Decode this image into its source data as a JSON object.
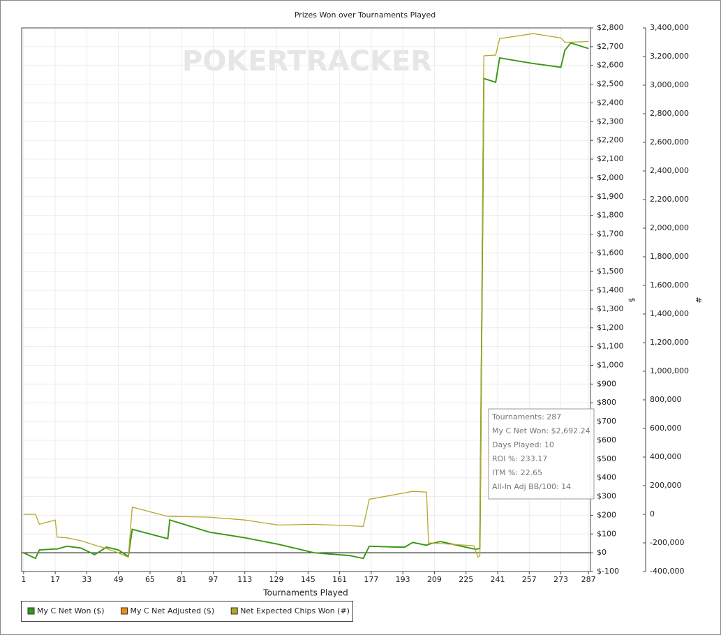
{
  "chart_data": {
    "type": "line",
    "title": "Prizes Won over Tournaments Played",
    "watermark": "POKERTRACKER",
    "x_label": "Tournaments Played",
    "y_label": "$",
    "y2_label": "#",
    "x": [
      1,
      7,
      9,
      17,
      18,
      23,
      30,
      37,
      43,
      49,
      54,
      56,
      74,
      75,
      95,
      113,
      130,
      148,
      166,
      173,
      176,
      190,
      194,
      198,
      205,
      206,
      212,
      229,
      231,
      232,
      234,
      240,
      242,
      259,
      273,
      275,
      278,
      287
    ],
    "series": [
      {
        "name": "My C Net Adjusted ($)",
        "color": "#f08c1a",
        "values": [
          0,
          -30,
          15,
          20,
          20,
          35,
          25,
          -10,
          30,
          15,
          -20,
          125,
          75,
          175,
          110,
          80,
          45,
          0,
          -15,
          -30,
          35,
          30,
          30,
          55,
          40,
          45,
          60,
          20,
          20,
          25,
          2530,
          2510,
          2640,
          2610,
          2590,
          2680,
          2720,
          2690
        ]
      },
      {
        "name": "My C Net Won ($)",
        "color": "#2f9a1a",
        "values": [
          0,
          -30,
          15,
          20,
          20,
          35,
          25,
          -10,
          30,
          15,
          -20,
          125,
          75,
          175,
          110,
          80,
          45,
          0,
          -15,
          -30,
          35,
          30,
          30,
          55,
          40,
          45,
          60,
          20,
          20,
          25,
          2530,
          2510,
          2640,
          2610,
          2590,
          2680,
          2720,
          2690
        ]
      },
      {
        "name": "Net Expected Chips Won (#)",
        "color": "#b5a82a",
        "axis": "y2",
        "values": [
          0,
          0,
          -70000,
          -40000,
          -160000,
          -165000,
          -185000,
          -215000,
          -240000,
          -270000,
          -300000,
          50000,
          -15000,
          -15000,
          -20000,
          -40000,
          -75000,
          -70000,
          -80000,
          -85000,
          105000,
          140000,
          150000,
          160000,
          155000,
          -200000,
          -205000,
          -220000,
          -300000,
          -290000,
          3205000,
          3210000,
          3325000,
          3360000,
          3330000,
          3300000,
          3300000,
          3305000
        ]
      }
    ],
    "legend_order": [
      1,
      0,
      2
    ],
    "xlim": [
      0,
      288
    ],
    "xticks": [
      1,
      17,
      33,
      49,
      65,
      81,
      97,
      113,
      129,
      145,
      161,
      177,
      193,
      209,
      225,
      241,
      257,
      273,
      287
    ],
    "ylim": [
      -100,
      2800
    ],
    "yticks": [
      {
        "value": -100,
        "label": "$-100"
      },
      {
        "value": 0,
        "label": "$0"
      },
      {
        "value": 100,
        "label": "$100"
      },
      {
        "value": 200,
        "label": "$200"
      },
      {
        "value": 300,
        "label": "$300"
      },
      {
        "value": 400,
        "label": "$400"
      },
      {
        "value": 500,
        "label": "$500"
      },
      {
        "value": 600,
        "label": "$600"
      },
      {
        "value": 700,
        "label": "$700"
      },
      {
        "value": 800,
        "label": "$800"
      },
      {
        "value": 900,
        "label": "$900"
      },
      {
        "value": 1000,
        "label": "$1,000"
      },
      {
        "value": 1100,
        "label": "$1,100"
      },
      {
        "value": 1200,
        "label": "$1,200"
      },
      {
        "value": 1300,
        "label": "$1,300"
      },
      {
        "value": 1400,
        "label": "$1,400"
      },
      {
        "value": 1500,
        "label": "$1,500"
      },
      {
        "value": 1600,
        "label": "$1,600"
      },
      {
        "value": 1700,
        "label": "$1,700"
      },
      {
        "value": 1800,
        "label": "$1,800"
      },
      {
        "value": 1900,
        "label": "$1,900"
      },
      {
        "value": 2000,
        "label": "$2,000"
      },
      {
        "value": 2100,
        "label": "$2,100"
      },
      {
        "value": 2200,
        "label": "$2,200"
      },
      {
        "value": 2300,
        "label": "$2,300"
      },
      {
        "value": 2400,
        "label": "$2,400"
      },
      {
        "value": 2500,
        "label": "$2,500"
      },
      {
        "value": 2600,
        "label": "$2,600"
      },
      {
        "value": 2700,
        "label": "$2,700"
      },
      {
        "value": 2800,
        "label": "$2,800"
      }
    ],
    "y2lim": [
      -400000,
      3400000
    ],
    "y2ticks": [
      {
        "value": -400000,
        "label": "-400,000"
      },
      {
        "value": -200000,
        "label": "-200,000"
      },
      0,
      {
        "value": 200000,
        "label": "200,000"
      },
      {
        "value": 400000,
        "label": "400,000"
      },
      {
        "value": 600000,
        "label": "600,000"
      },
      {
        "value": 800000,
        "label": "800,000"
      },
      {
        "value": 1000000,
        "label": "1,000,000"
      },
      {
        "value": 1200000,
        "label": "1,200,000"
      },
      {
        "value": 1400000,
        "label": "1,400,000"
      },
      {
        "value": 1600000,
        "label": "1,600,000"
      },
      {
        "value": 1800000,
        "label": "1,800,000"
      },
      {
        "value": 2000000,
        "label": "2,000,000"
      },
      {
        "value": 2200000,
        "label": "2,200,000"
      },
      {
        "value": 2400000,
        "label": "2,400,000"
      },
      {
        "value": 2600000,
        "label": "2,600,000"
      },
      {
        "value": 2800000,
        "label": "2,800,000"
      },
      {
        "value": 3000000,
        "label": "3,000,000"
      },
      {
        "value": 3200000,
        "label": "3,200,000"
      },
      {
        "value": 3400000,
        "label": "3,400,000"
      }
    ],
    "grid": true,
    "zero_line": 0,
    "tooltip": [
      "Tournaments: 287",
      "My C Net Won: $2,692.24",
      "Days Played: 10",
      "ROI %: 233.17",
      "ITM %: 22.65",
      "All-In Adj BB/100: 14"
    ]
  }
}
